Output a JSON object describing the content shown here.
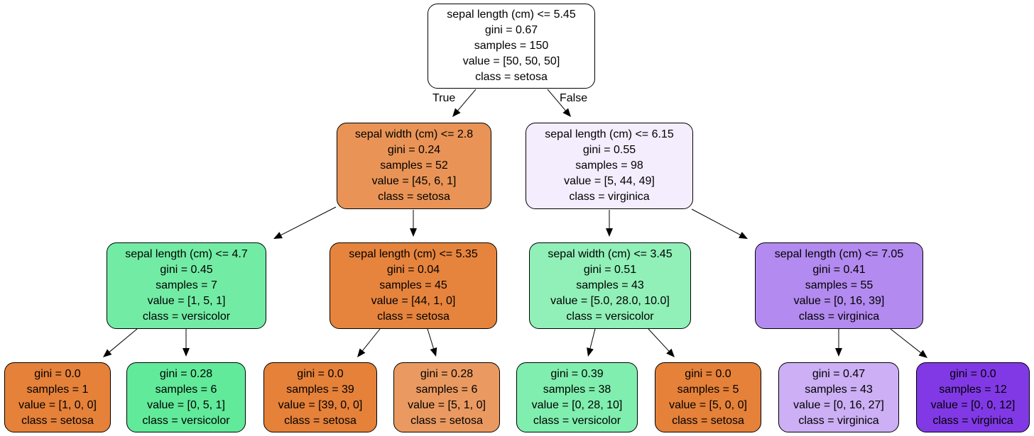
{
  "edge_labels": {
    "true": "True",
    "false": "False"
  },
  "nodes": [
    {
      "id": "n0",
      "lines": [
        "sepal length (cm) <= 5.45",
        "gini = 0.67",
        "samples = 150",
        "value = [50, 50, 50]",
        "class = setosa"
      ],
      "color": "#ffffff"
    },
    {
      "id": "n1",
      "lines": [
        "sepal width (cm) <= 2.8",
        "gini = 0.24",
        "samples = 52",
        "value = [45, 6, 1]",
        "class = setosa"
      ],
      "color": "#e99456"
    },
    {
      "id": "n2",
      "lines": [
        "sepal length (cm) <= 6.15",
        "gini = 0.55",
        "samples = 98",
        "value = [5, 44, 49]",
        "class = virginica"
      ],
      "color": "#f3edfd"
    },
    {
      "id": "n3",
      "lines": [
        "sepal length (cm) <= 4.7",
        "gini = 0.45",
        "samples = 7",
        "value = [1, 5, 1]",
        "class = versicolor"
      ],
      "color": "#72eca5"
    },
    {
      "id": "n4",
      "lines": [
        "sepal length (cm) <= 5.35",
        "gini = 0.04",
        "samples = 45",
        "value = [44, 1, 0]",
        "class = setosa"
      ],
      "color": "#e6843d"
    },
    {
      "id": "n5",
      "lines": [
        "sepal width (cm) <= 3.45",
        "gini = 0.51",
        "samples = 43",
        "value = [5.0, 28.0, 10.0]",
        "class = versicolor"
      ],
      "color": "#90f0b8"
    },
    {
      "id": "n6",
      "lines": [
        "sepal length (cm) <= 7.05",
        "gini = 0.41",
        "samples = 55",
        "value = [0, 16, 39]",
        "class = virginica"
      ],
      "color": "#b38af0"
    },
    {
      "id": "n7",
      "lines": [
        "gini = 0.0",
        "samples = 1",
        "value = [1, 0, 0]",
        "class = setosa"
      ],
      "color": "#e58139"
    },
    {
      "id": "n8",
      "lines": [
        "gini = 0.28",
        "samples = 6",
        "value = [0, 5, 1]",
        "class = versicolor"
      ],
      "color": "#61ea9a"
    },
    {
      "id": "n9",
      "lines": [
        "gini = 0.0",
        "samples = 39",
        "value = [39, 0, 0]",
        "class = setosa"
      ],
      "color": "#e58139"
    },
    {
      "id": "n10",
      "lines": [
        "gini = 0.28",
        "samples = 6",
        "value = [5, 1, 0]",
        "class = setosa"
      ],
      "color": "#ea9a61"
    },
    {
      "id": "n11",
      "lines": [
        "gini = 0.39",
        "samples = 38",
        "value = [0, 28, 10]",
        "class = versicolor"
      ],
      "color": "#80eeae"
    },
    {
      "id": "n12",
      "lines": [
        "gini = 0.0",
        "samples = 5",
        "value = [5, 0, 0]",
        "class = setosa"
      ],
      "color": "#e58139"
    },
    {
      "id": "n13",
      "lines": [
        "gini = 0.47",
        "samples = 43",
        "value = [0, 16, 27]",
        "class = virginica"
      ],
      "color": "#ccaff4"
    },
    {
      "id": "n14",
      "lines": [
        "gini = 0.0",
        "samples = 12",
        "value = [0, 0, 12]",
        "class = virginica"
      ],
      "color": "#8139e5"
    }
  ],
  "edges": [
    {
      "from": "n0",
      "to": "n1",
      "label": "true"
    },
    {
      "from": "n0",
      "to": "n2",
      "label": "false"
    },
    {
      "from": "n1",
      "to": "n3"
    },
    {
      "from": "n1",
      "to": "n4"
    },
    {
      "from": "n2",
      "to": "n5"
    },
    {
      "from": "n2",
      "to": "n6"
    },
    {
      "from": "n3",
      "to": "n7"
    },
    {
      "from": "n3",
      "to": "n8"
    },
    {
      "from": "n4",
      "to": "n9"
    },
    {
      "from": "n4",
      "to": "n10"
    },
    {
      "from": "n5",
      "to": "n11"
    },
    {
      "from": "n5",
      "to": "n12"
    },
    {
      "from": "n6",
      "to": "n13"
    },
    {
      "from": "n6",
      "to": "n14"
    }
  ]
}
